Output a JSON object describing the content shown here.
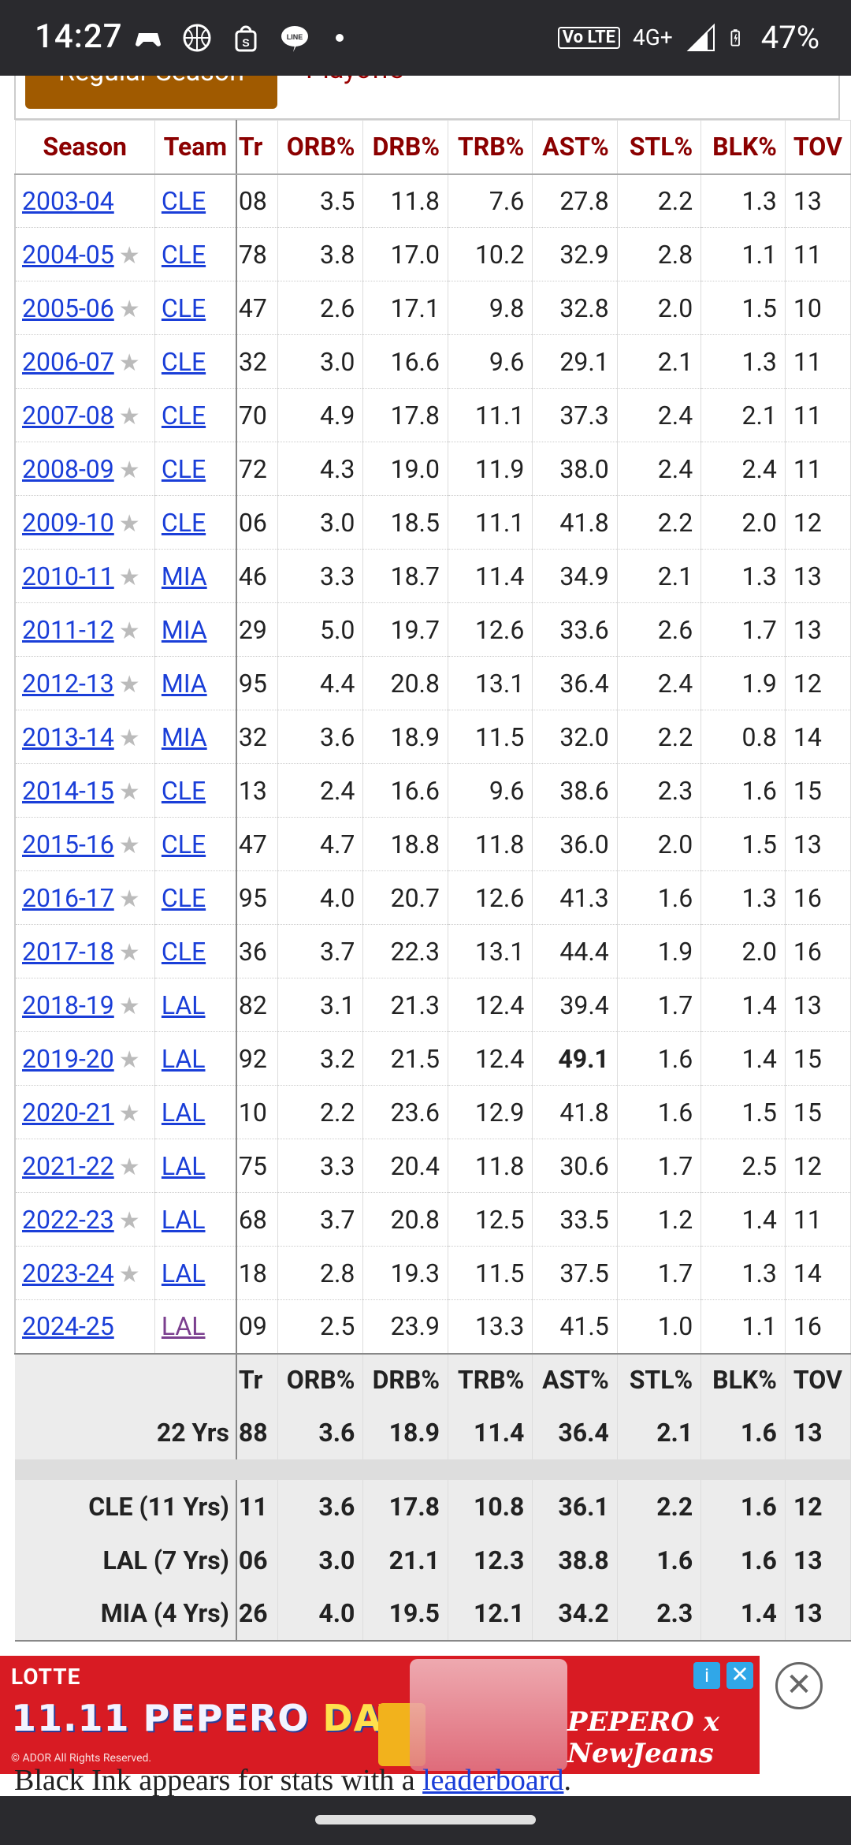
{
  "status_bar": {
    "time": "14:27",
    "left_icons": [
      "game-controller-icon",
      "basketball-icon",
      "shopping-bag-icon",
      "line-chat-icon",
      "dot-icon"
    ],
    "right_icons": [
      "volte-icon",
      "signal-4g-icon",
      "battery-charging-icon"
    ],
    "volte_label": "Vo LTE",
    "network": "4G+",
    "battery": "47%"
  },
  "tabs": {
    "active": "Regular Season",
    "inactive": "Playoffs"
  },
  "table": {
    "headers": [
      "Season",
      "Team",
      "Tr",
      "ORB%",
      "DRB%",
      "TRB%",
      "AST%",
      "STL%",
      "BLK%",
      "TOV"
    ],
    "rows": [
      {
        "season": "2003-04",
        "star": "",
        "team": "CLE",
        "tr": "08",
        "orb": "3.5",
        "drb": "11.8",
        "trb": "7.6",
        "ast": "27.8",
        "stl": "2.2",
        "blk": "1.3",
        "tov": "13"
      },
      {
        "season": "2004-05",
        "star": "★",
        "team": "CLE",
        "tr": "78",
        "orb": "3.8",
        "drb": "17.0",
        "trb": "10.2",
        "ast": "32.9",
        "stl": "2.8",
        "blk": "1.1",
        "tov": "11"
      },
      {
        "season": "2005-06",
        "star": "★",
        "team": "CLE",
        "tr": "47",
        "orb": "2.6",
        "drb": "17.1",
        "trb": "9.8",
        "ast": "32.8",
        "stl": "2.0",
        "blk": "1.5",
        "tov": "10"
      },
      {
        "season": "2006-07",
        "star": "★",
        "team": "CLE",
        "tr": "32",
        "orb": "3.0",
        "drb": "16.6",
        "trb": "9.6",
        "ast": "29.1",
        "stl": "2.1",
        "blk": "1.3",
        "tov": "11"
      },
      {
        "season": "2007-08",
        "star": "★",
        "team": "CLE",
        "tr": "70",
        "orb": "4.9",
        "drb": "17.8",
        "trb": "11.1",
        "ast": "37.3",
        "stl": "2.4",
        "blk": "2.1",
        "tov": "11"
      },
      {
        "season": "2008-09",
        "star": "★",
        "team": "CLE",
        "tr": "72",
        "orb": "4.3",
        "drb": "19.0",
        "trb": "11.9",
        "ast": "38.0",
        "stl": "2.4",
        "blk": "2.4",
        "tov": "11"
      },
      {
        "season": "2009-10",
        "star": "★",
        "team": "CLE",
        "tr": "06",
        "orb": "3.0",
        "drb": "18.5",
        "trb": "11.1",
        "ast": "41.8",
        "stl": "2.2",
        "blk": "2.0",
        "tov": "12"
      },
      {
        "season": "2010-11",
        "star": "★",
        "team": "MIA",
        "tr": "46",
        "orb": "3.3",
        "drb": "18.7",
        "trb": "11.4",
        "ast": "34.9",
        "stl": "2.1",
        "blk": "1.3",
        "tov": "13"
      },
      {
        "season": "2011-12",
        "star": "★",
        "team": "MIA",
        "tr": "29",
        "orb": "5.0",
        "drb": "19.7",
        "trb": "12.6",
        "ast": "33.6",
        "stl": "2.6",
        "blk": "1.7",
        "tov": "13"
      },
      {
        "season": "2012-13",
        "star": "★",
        "team": "MIA",
        "tr": "95",
        "orb": "4.4",
        "drb": "20.8",
        "trb": "13.1",
        "ast": "36.4",
        "stl": "2.4",
        "blk": "1.9",
        "tov": "12"
      },
      {
        "season": "2013-14",
        "star": "★",
        "team": "MIA",
        "tr": "32",
        "orb": "3.6",
        "drb": "18.9",
        "trb": "11.5",
        "ast": "32.0",
        "stl": "2.2",
        "blk": "0.8",
        "tov": "14"
      },
      {
        "season": "2014-15",
        "star": "★",
        "team": "CLE",
        "tr": "13",
        "orb": "2.4",
        "drb": "16.6",
        "trb": "9.6",
        "ast": "38.6",
        "stl": "2.3",
        "blk": "1.6",
        "tov": "15"
      },
      {
        "season": "2015-16",
        "star": "★",
        "team": "CLE",
        "tr": "47",
        "orb": "4.7",
        "drb": "18.8",
        "trb": "11.8",
        "ast": "36.0",
        "stl": "2.0",
        "blk": "1.5",
        "tov": "13"
      },
      {
        "season": "2016-17",
        "star": "★",
        "team": "CLE",
        "tr": "95",
        "orb": "4.0",
        "drb": "20.7",
        "trb": "12.6",
        "ast": "41.3",
        "stl": "1.6",
        "blk": "1.3",
        "tov": "16"
      },
      {
        "season": "2017-18",
        "star": "★",
        "team": "CLE",
        "tr": "36",
        "orb": "3.7",
        "drb": "22.3",
        "trb": "13.1",
        "ast": "44.4",
        "stl": "1.9",
        "blk": "2.0",
        "tov": "16"
      },
      {
        "season": "2018-19",
        "star": "★",
        "team": "LAL",
        "tr": "82",
        "orb": "3.1",
        "drb": "21.3",
        "trb": "12.4",
        "ast": "39.4",
        "stl": "1.7",
        "blk": "1.4",
        "tov": "13"
      },
      {
        "season": "2019-20",
        "star": "★",
        "team": "LAL",
        "tr": "92",
        "orb": "3.2",
        "drb": "21.5",
        "trb": "12.4",
        "ast": "49.1",
        "stl": "1.6",
        "blk": "1.4",
        "tov": "15",
        "ast_bold": true
      },
      {
        "season": "2020-21",
        "star": "★",
        "team": "LAL",
        "tr": "10",
        "orb": "2.2",
        "drb": "23.6",
        "trb": "12.9",
        "ast": "41.8",
        "stl": "1.6",
        "blk": "1.5",
        "tov": "15"
      },
      {
        "season": "2021-22",
        "star": "★",
        "team": "LAL",
        "tr": "75",
        "orb": "3.3",
        "drb": "20.4",
        "trb": "11.8",
        "ast": "30.6",
        "stl": "1.7",
        "blk": "2.5",
        "tov": "12"
      },
      {
        "season": "2022-23",
        "star": "★",
        "team": "LAL",
        "tr": "68",
        "orb": "3.7",
        "drb": "20.8",
        "trb": "12.5",
        "ast": "33.5",
        "stl": "1.2",
        "blk": "1.4",
        "tov": "11"
      },
      {
        "season": "2023-24",
        "star": "★",
        "team": "LAL",
        "tr": "18",
        "orb": "2.8",
        "drb": "19.3",
        "trb": "11.5",
        "ast": "37.5",
        "stl": "1.7",
        "blk": "1.3",
        "tov": "14"
      },
      {
        "season": "2024-25",
        "star": "",
        "team": "LAL",
        "tr": "09",
        "orb": "2.5",
        "drb": "23.9",
        "trb": "13.3",
        "ast": "41.5",
        "stl": "1.0",
        "blk": "1.1",
        "tov": "16",
        "team_visited": true
      }
    ],
    "footer_headers": [
      "Tr",
      "ORB%",
      "DRB%",
      "TRB%",
      "AST%",
      "STL%",
      "BLK%",
      "TOV"
    ],
    "career": {
      "label": "22 Yrs",
      "tr": "88",
      "orb": "3.6",
      "drb": "18.9",
      "trb": "11.4",
      "ast": "36.4",
      "stl": "2.1",
      "blk": "1.6",
      "tov": "13"
    },
    "team_totals": [
      {
        "label": "CLE (11 Yrs)",
        "tr": "11",
        "orb": "3.6",
        "drb": "17.8",
        "trb": "10.8",
        "ast": "36.1",
        "stl": "2.2",
        "blk": "1.6",
        "tov": "12"
      },
      {
        "label": "LAL (7 Yrs)",
        "tr": "06",
        "orb": "3.0",
        "drb": "21.1",
        "trb": "12.3",
        "ast": "38.8",
        "stl": "1.6",
        "blk": "1.6",
        "tov": "13"
      },
      {
        "label": "MIA (4 Yrs)",
        "tr": "26",
        "orb": "4.0",
        "drb": "19.5",
        "trb": "12.1",
        "ast": "34.2",
        "stl": "2.3",
        "blk": "1.4",
        "tov": "13"
      }
    ]
  },
  "ad": {
    "brand": "LOTTE",
    "title_part1": "11.11 PEPERO",
    "title_part2": "DAY",
    "copyright": "© ADOR All Rights Reserved.",
    "collab": "PEPERO x NewJeans",
    "info_icon": "info-icon",
    "close_icon": "close-icon",
    "colors": {
      "background": "#d81b23",
      "accent": "#30a7e8"
    }
  },
  "footer_text": {
    "prefix": "Black Ink appears for stats with a ",
    "link": "leaderboard",
    "suffix": "."
  },
  "colors": {
    "header_text": "#8b0000",
    "link": "#1a3ed8",
    "visited_link": "#7b3f8f",
    "tab_active_bg": "#a05a00"
  }
}
